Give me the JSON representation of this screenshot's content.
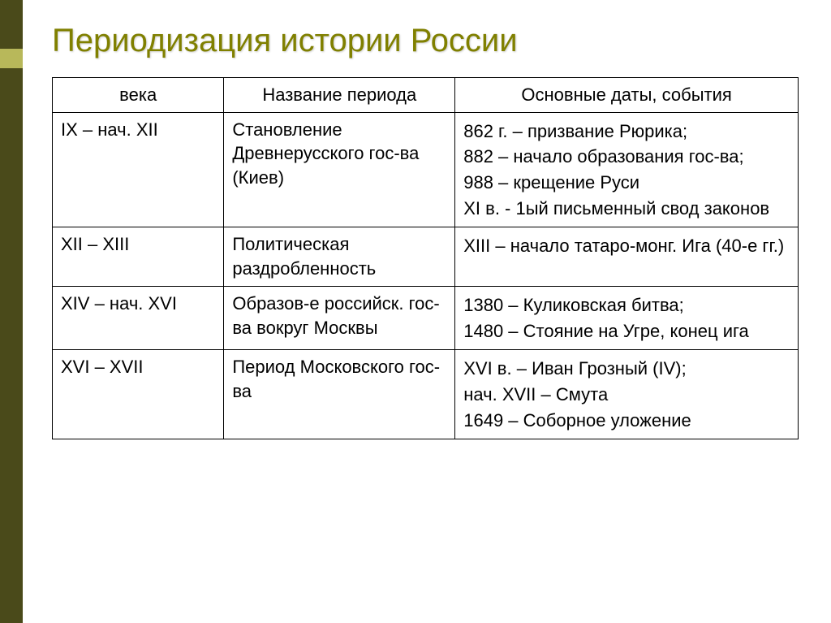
{
  "title": "Периодизация истории России",
  "columns": [
    "века",
    "Название периода",
    "Основные даты, события"
  ],
  "rows": [
    {
      "century": "IX – нач. XII",
      "period": "Становление Древнерусского гос-ва (Киев)",
      "events": [
        "862 г. – призвание Рюрика;",
        "882 – начало образования гос-ва;",
        "988 – крещение Руси",
        "XI в. - 1ый письменный свод законов"
      ]
    },
    {
      "century": "XII – XIII",
      "period": "Политическая раздробленность",
      "events": [
        "XIII – начало татаро-монг. Ига (40-е гг.)"
      ]
    },
    {
      "century": "XIV – нач. XVI",
      "period": "Образов-е российск. гос-ва вокруг Москвы",
      "events": [
        "1380 – Куликовская битва;",
        "1480 – Стояние на Угре, конец ига"
      ]
    },
    {
      "century": "XVI – XVII",
      "period": "Период Московского гос-ва",
      "events": [
        "XVI в. – Иван Грозный (IV);",
        "нач. XVII – Смута",
        "1649 – Соборное уложение"
      ]
    }
  ],
  "colors": {
    "sidebar": "#4a4a1a",
    "marker": "#b8b85a",
    "title": "#808000",
    "border": "#000000",
    "text": "#000000",
    "bg": "#ffffff"
  },
  "fontsizes": {
    "title": 40,
    "cell": 22
  }
}
